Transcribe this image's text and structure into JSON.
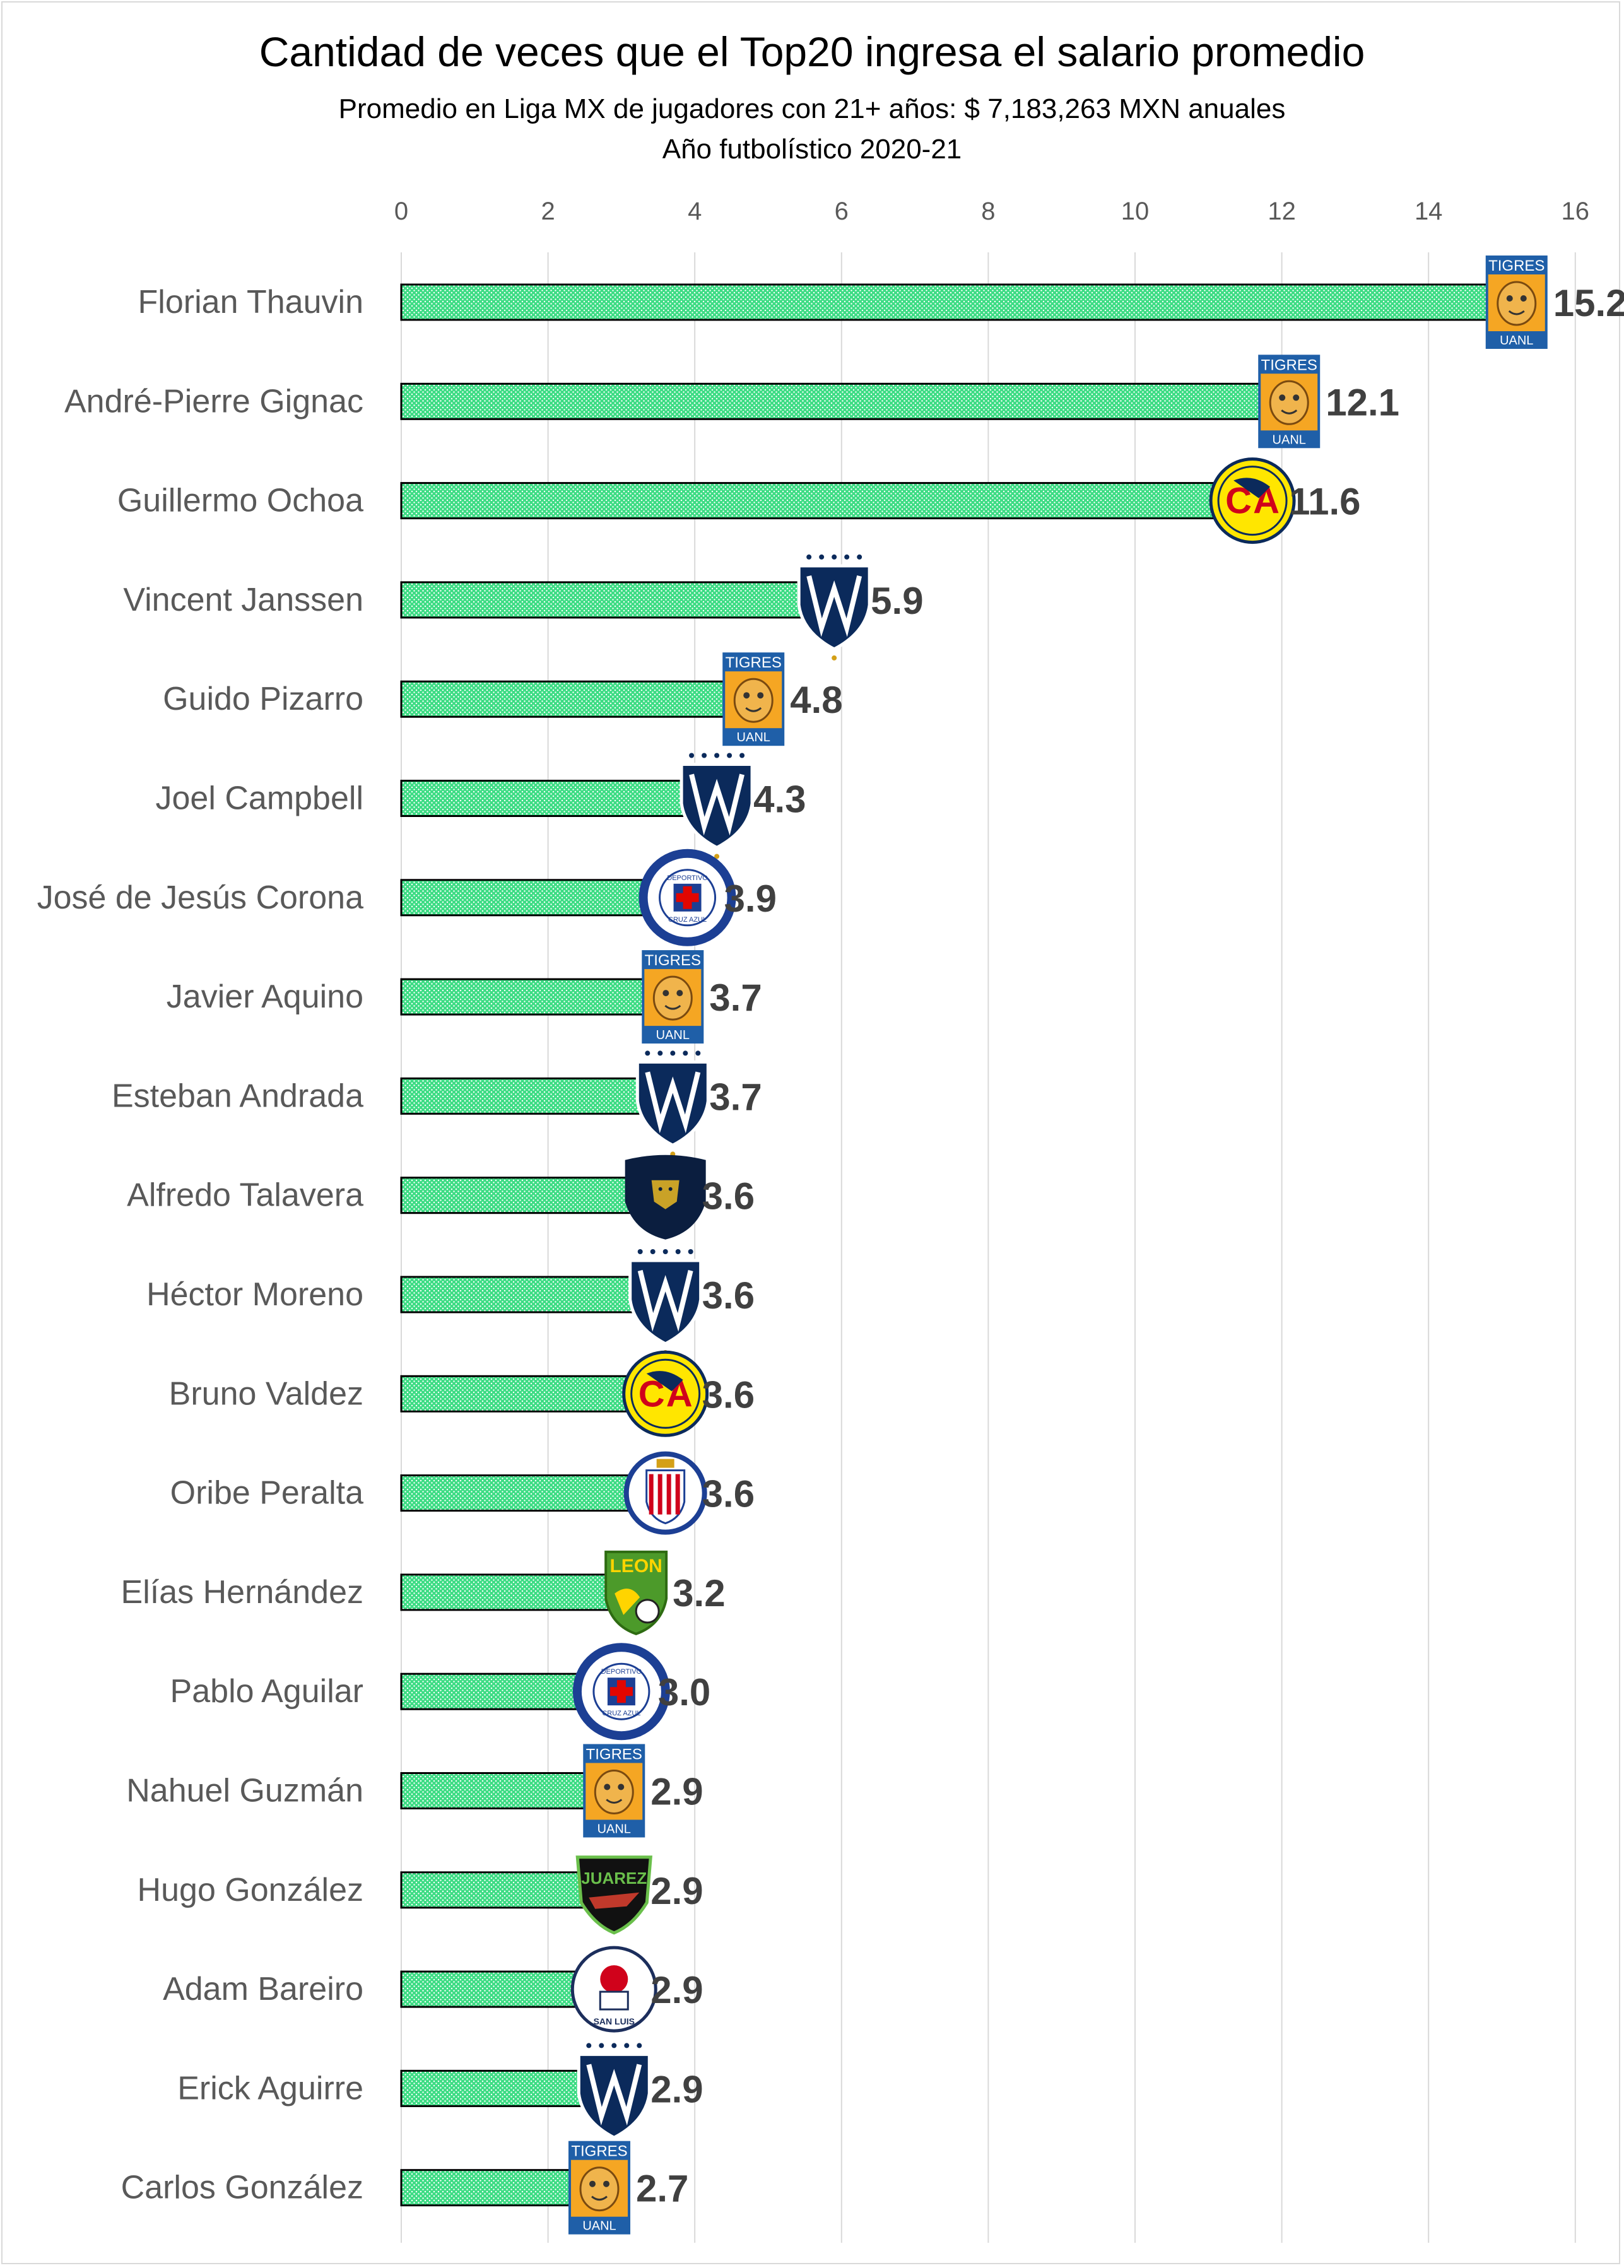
{
  "chart_data": {
    "type": "bar",
    "orientation": "horizontal",
    "title": "Cantidad de veces que el Top20 ingresa el salario promedio",
    "subtitle": "Promedio en Liga MX de jugadores con 21+ años: $ 7,183,263 MXN anuales",
    "subtitle2": "Año futbolístico 2020-21",
    "xlim": [
      0,
      16
    ],
    "x_ticks": [
      0,
      2,
      4,
      6,
      8,
      10,
      12,
      14,
      16
    ],
    "grid": true,
    "bar_color": "#2ecc71",
    "bar_pattern": "dotted green fill with black outline",
    "categories": [
      "Florian Thauvin",
      "André-Pierre Gignac",
      "Guillermo Ochoa",
      "Vincent Janssen",
      "Guido Pizarro",
      "Joel Campbell",
      "José de Jesús Corona",
      "Javier Aquino",
      "Esteban Andrada",
      "Alfredo Talavera",
      "Héctor Moreno",
      "Bruno Valdez",
      "Oribe Peralta",
      "Elías Hernández",
      "Pablo Aguilar",
      "Nahuel Guzmán",
      "Hugo González",
      "Adam Bareiro",
      "Erick Aguirre",
      "Carlos González"
    ],
    "values": [
      15.2,
      12.1,
      11.6,
      5.9,
      4.8,
      4.3,
      3.9,
      3.7,
      3.7,
      3.6,
      3.6,
      3.6,
      3.6,
      3.2,
      3.0,
      2.9,
      2.9,
      2.9,
      2.9,
      2.7
    ],
    "value_labels": [
      "15.2",
      "12.1",
      "11.6",
      "5.9",
      "4.8",
      "4.3",
      "3.9",
      "3.7",
      "3.7",
      "3.6",
      "3.6",
      "3.6",
      "3.6",
      "3.2",
      "3.0",
      "2.9",
      "2.9",
      "2.9",
      "2.9",
      "2.7"
    ],
    "club_logos": [
      "tigres-logo",
      "tigres-logo",
      "america-logo",
      "monterrey-logo",
      "tigres-logo",
      "monterrey-logo",
      "cruz-azul-logo",
      "tigres-logo",
      "monterrey-logo",
      "pumas-logo",
      "monterrey-logo",
      "america-logo",
      "chivas-logo",
      "leon-logo",
      "cruz-azul-logo",
      "tigres-logo",
      "juarez-logo",
      "atletico-san-luis-logo",
      "monterrey-logo",
      "tigres-logo"
    ],
    "logo_text": {
      "tigres": [
        "TIGRES",
        "UANL"
      ],
      "cruz_azul": [
        "DEPORTIVO",
        "CRUZ AZUL"
      ],
      "leon": "LEON",
      "juarez": "JUAREZ",
      "san_luis": "SAN LUIS"
    }
  }
}
